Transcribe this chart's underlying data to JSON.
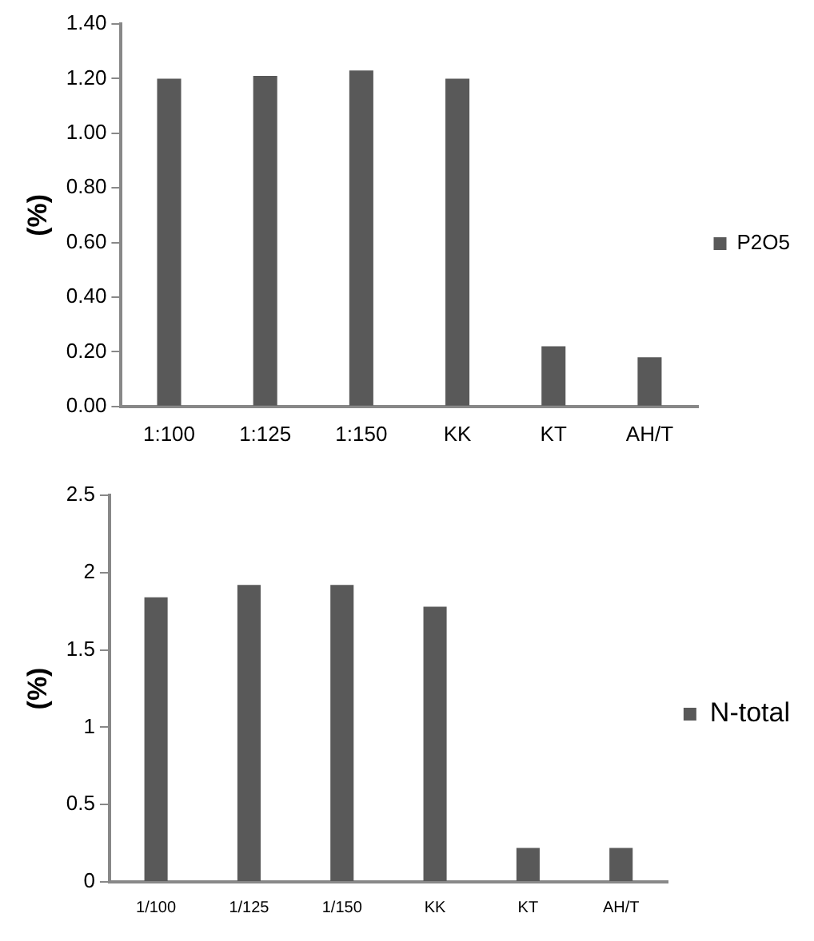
{
  "chart_data": [
    {
      "type": "bar",
      "ylabel": "(%)",
      "categories": [
        "1:100",
        "1:125",
        "1:150",
        "KK",
        "KT",
        "AH/T"
      ],
      "series": [
        {
          "name": "P2O5",
          "color": "#595959",
          "values": [
            1.2,
            1.21,
            1.23,
            1.2,
            0.22,
            0.18
          ]
        }
      ],
      "ylim": [
        0,
        1.4
      ],
      "yticks": [
        {
          "value": 0,
          "label": "0.00"
        },
        {
          "value": 0.2,
          "label": "0.20"
        },
        {
          "value": 0.4,
          "label": "0.40"
        },
        {
          "value": 0.6,
          "label": "0.60"
        },
        {
          "value": 0.8,
          "label": "0.80"
        },
        {
          "value": 1,
          "label": "1.00"
        },
        {
          "value": 1.2,
          "label": "1.20"
        },
        {
          "value": 1.4,
          "label": "1.40"
        }
      ],
      "grid": false,
      "legend": "right"
    },
    {
      "type": "bar",
      "ylabel": "(%)",
      "categories": [
        "1/100",
        "1/125",
        "1/150",
        "KK",
        "KT",
        "AH/T"
      ],
      "series": [
        {
          "name": "N-total",
          "color": "#595959",
          "values": [
            1.84,
            1.92,
            1.92,
            1.78,
            0.22,
            0.22
          ]
        }
      ],
      "ylim": [
        0,
        2.5
      ],
      "yticks": [
        0,
        0.5,
        1,
        1.5,
        2,
        2.5
      ],
      "grid": false,
      "legend": "right"
    }
  ]
}
